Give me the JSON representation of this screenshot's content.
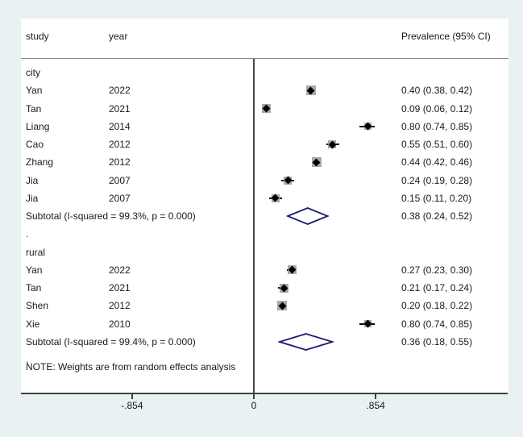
{
  "figure": {
    "header": {
      "study_col": "study",
      "year_col": "year",
      "effect_col": "Prevalence (95% CI)"
    },
    "note": "NOTE: Weights are from random effects analysis",
    "spacer_label": "."
  },
  "axis": {
    "ticks": [
      {
        "label": "-.854",
        "value": -0.854
      },
      {
        "label": "0",
        "value": 0
      },
      {
        "label": ".854",
        "value": 0.854
      }
    ]
  },
  "chart_data": {
    "type": "forest",
    "title": "",
    "effect_measure": "Prevalence (95% CI)",
    "model": "random effects",
    "x_ticks": [
      "-.854",
      "0",
      ".854"
    ],
    "x_range": [
      -0.854,
      1.78
    ],
    "groups": [
      {
        "label": "city",
        "studies": [
          {
            "study": "Yan",
            "year": "2022",
            "estimate": 0.4,
            "ci_low": 0.38,
            "ci_high": 0.42,
            "display": "0.40 (0.38, 0.42)",
            "box_size": 12
          },
          {
            "study": "Tan",
            "year": "2021",
            "estimate": 0.09,
            "ci_low": 0.06,
            "ci_high": 0.12,
            "display": "0.09 (0.06, 0.12)",
            "box_size": 11
          },
          {
            "study": "Liang",
            "year": "2014",
            "estimate": 0.8,
            "ci_low": 0.74,
            "ci_high": 0.85,
            "display": "0.80 (0.74, 0.85)",
            "box_size": 9
          },
          {
            "study": "Cao",
            "year": "2012",
            "estimate": 0.55,
            "ci_low": 0.51,
            "ci_high": 0.6,
            "display": "0.55 (0.51, 0.60)",
            "box_size": 10
          },
          {
            "study": "Zhang",
            "year": "2012",
            "estimate": 0.44,
            "ci_low": 0.42,
            "ci_high": 0.46,
            "display": "0.44 (0.42, 0.46)",
            "box_size": 12
          },
          {
            "study": "Jia",
            "year": "2007",
            "estimate": 0.24,
            "ci_low": 0.19,
            "ci_high": 0.28,
            "display": "0.24 (0.19, 0.28)",
            "box_size": 10
          },
          {
            "study": "Jia",
            "year": "2007",
            "estimate": 0.15,
            "ci_low": 0.11,
            "ci_high": 0.2,
            "display": "0.15 (0.11, 0.20)",
            "box_size": 10
          }
        ],
        "subtotal": {
          "label": "Subtotal  (I-squared = 99.3%, p = 0.000)",
          "estimate": 0.38,
          "ci_low": 0.24,
          "ci_high": 0.52,
          "display": "0.38 (0.24, 0.52)"
        }
      },
      {
        "label": "rural",
        "studies": [
          {
            "study": "Yan",
            "year": "2022",
            "estimate": 0.27,
            "ci_low": 0.23,
            "ci_high": 0.3,
            "display": "0.27 (0.23, 0.30)",
            "box_size": 11
          },
          {
            "study": "Tan",
            "year": "2021",
            "estimate": 0.21,
            "ci_low": 0.17,
            "ci_high": 0.24,
            "display": "0.21 (0.17, 0.24)",
            "box_size": 11
          },
          {
            "study": "Shen",
            "year": "2012",
            "estimate": 0.2,
            "ci_low": 0.18,
            "ci_high": 0.22,
            "display": "0.20 (0.18, 0.22)",
            "box_size": 12
          },
          {
            "study": "Xie",
            "year": "2010",
            "estimate": 0.8,
            "ci_low": 0.74,
            "ci_high": 0.85,
            "display": "0.80 (0.74, 0.85)",
            "box_size": 9
          }
        ],
        "subtotal": {
          "label": "Subtotal  (I-squared = 99.4%, p = 0.000)",
          "estimate": 0.36,
          "ci_low": 0.18,
          "ci_high": 0.55,
          "display": "0.36 (0.18, 0.55)"
        }
      }
    ]
  },
  "colors": {
    "background": "#e9f1f2",
    "panel": "#ffffff",
    "text": "#1a1a1a",
    "marker": "#000000",
    "weight_box": "#a9a9a9",
    "diamond_outline": "#1c1c6e",
    "axis_line": "#404040",
    "separator": "#8a8a8a"
  }
}
